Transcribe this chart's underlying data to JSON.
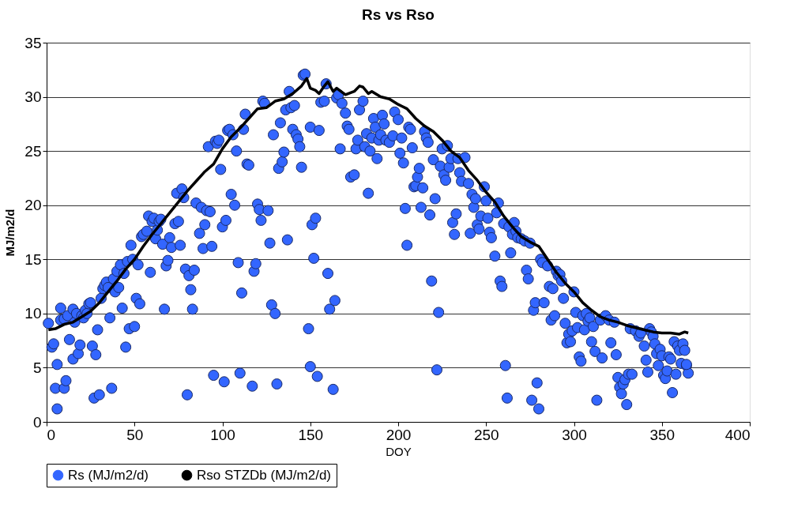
{
  "chart_data": {
    "type": "scatter",
    "title": "Rs vs Rso",
    "xlabel": "DOY",
    "ylabel": "MJ/m2/d",
    "xlim": [
      0,
      400
    ],
    "xticks": [
      0,
      50,
      100,
      150,
      200,
      250,
      300,
      350,
      400
    ],
    "ylim": [
      0,
      35
    ],
    "yticks": [
      0,
      5,
      10,
      15,
      20,
      25,
      30,
      35
    ],
    "grid": "y",
    "legend": "bottom",
    "series": [
      {
        "name": "Rs (MJ/m2/d)",
        "marker": "circle",
        "color": "#3366ff",
        "x": [
          1,
          3,
          4,
          5,
          6,
          6,
          8,
          8,
          10,
          10,
          11,
          12,
          13,
          15,
          15,
          16,
          17,
          18,
          19,
          20,
          21,
          22,
          23,
          24,
          25,
          26,
          27,
          28,
          29,
          30,
          31,
          32,
          33,
          34,
          35,
          36,
          37,
          38,
          39,
          40,
          41,
          42,
          43,
          44,
          45,
          46,
          47,
          48,
          49,
          50,
          51,
          52,
          53,
          54,
          55,
          57,
          58,
          59,
          60,
          61,
          62,
          63,
          64,
          65,
          66,
          67,
          68,
          69,
          70,
          71,
          73,
          74,
          75,
          76,
          77,
          78,
          79,
          80,
          81,
          82,
          83,
          84,
          85,
          87,
          88,
          89,
          90,
          91,
          92,
          93,
          94,
          95,
          96,
          97,
          98,
          99,
          100,
          101,
          102,
          103,
          104,
          105,
          106,
          107,
          108,
          109,
          110,
          111,
          112,
          113,
          114,
          115,
          117,
          118,
          119,
          120,
          121,
          122,
          123,
          124,
          126,
          127,
          128,
          129,
          130,
          131,
          132,
          133,
          134,
          135,
          136,
          137,
          138,
          139,
          140,
          141,
          142,
          143,
          144,
          145,
          146,
          147,
          149,
          150,
          150,
          151,
          152,
          153,
          154,
          155,
          156,
          158,
          159,
          160,
          161,
          163,
          164,
          165,
          166,
          167,
          168,
          170,
          171,
          172,
          173,
          175,
          176,
          177,
          178,
          180,
          181,
          182,
          183,
          184,
          185,
          186,
          187,
          188,
          189,
          190,
          191,
          192,
          193,
          195,
          197,
          198,
          200,
          201,
          202,
          203,
          204,
          205,
          206,
          207,
          208,
          209,
          210,
          211,
          212,
          213,
          214,
          215,
          216,
          217,
          218,
          219,
          220,
          221,
          222,
          223,
          224,
          225,
          226,
          227,
          228,
          229,
          230,
          231,
          232,
          233,
          234,
          235,
          236,
          238,
          240,
          241,
          242,
          243,
          244,
          245,
          246,
          247,
          249,
          250,
          251,
          252,
          253,
          255,
          256,
          257,
          258,
          259,
          260,
          261,
          262,
          263,
          264,
          265,
          266,
          267,
          268,
          270,
          272,
          273,
          274,
          275,
          276,
          277,
          278,
          279,
          280,
          281,
          282,
          283,
          285,
          286,
          287,
          288,
          289,
          290,
          291,
          292,
          293,
          294,
          295,
          296,
          297,
          298,
          299,
          300,
          301,
          302,
          303,
          304,
          305,
          306,
          307,
          308,
          309,
          310,
          311,
          312,
          313,
          315,
          316,
          318,
          320,
          321,
          323,
          324,
          325,
          326,
          327,
          328,
          329,
          330,
          331,
          332,
          333,
          335,
          337,
          338,
          340,
          341,
          342,
          343,
          344,
          345,
          346,
          347,
          348,
          349,
          350,
          351,
          352,
          353,
          354,
          355,
          356,
          357,
          358,
          359,
          360,
          361,
          362,
          363,
          364,
          365,
          364
        ],
        "values": [
          9.1,
          6.9,
          7.2,
          3.1,
          1.2,
          5.3,
          10.5,
          9.4,
          9.5,
          3.1,
          3.8,
          9.8,
          7.6,
          10.4,
          5.8,
          9.2,
          10.0,
          6.3,
          7.1,
          9.8,
          9.6,
          10.3,
          10.0,
          10.9,
          11.0,
          7.0,
          2.2,
          6.2,
          8.5,
          2.5,
          11.4,
          12.3,
          12.6,
          12.9,
          12.4,
          9.6,
          3.1,
          13.2,
          12.0,
          13.9,
          12.4,
          14.5,
          10.5,
          13.7,
          6.9,
          14.8,
          8.6,
          16.3,
          15.0,
          8.8,
          11.4,
          14.5,
          10.9,
          17.1,
          17.3,
          17.6,
          19.0,
          13.8,
          18.5,
          18.8,
          16.9,
          17.7,
          18.5,
          18.7,
          16.4,
          10.4,
          14.4,
          14.9,
          17.0,
          16.1,
          18.3,
          21.1,
          18.5,
          16.3,
          21.5,
          20.7,
          14.1,
          2.5,
          13.5,
          12.2,
          10.4,
          14.0,
          20.2,
          17.4,
          19.8,
          16.0,
          18.2,
          19.5,
          25.4,
          19.4,
          16.2,
          4.3,
          25.9,
          25.7,
          26.0,
          23.3,
          18.0,
          3.7,
          18.6,
          26.9,
          27.0,
          21.0,
          26.5,
          20.0,
          25.0,
          14.7,
          4.5,
          11.9,
          27.0,
          28.4,
          23.8,
          23.7,
          3.3,
          13.9,
          14.6,
          20.1,
          19.6,
          18.6,
          29.6,
          29.4,
          19.5,
          16.5,
          10.8,
          26.5,
          10.0,
          3.5,
          23.4,
          27.6,
          24.0,
          24.9,
          28.8,
          16.8,
          30.5,
          29.0,
          27.0,
          29.2,
          26.5,
          26.1,
          25.4,
          23.5,
          32.0,
          32.1,
          8.6,
          27.2,
          5.1,
          18.2,
          15.1,
          18.8,
          4.2,
          26.9,
          29.5,
          29.6,
          31.2,
          13.7,
          10.4,
          3.0,
          11.2,
          29.9,
          30.2,
          25.2,
          29.4,
          28.5,
          27.3,
          27.0,
          22.6,
          22.8,
          25.2,
          26.0,
          28.8,
          29.6,
          25.4,
          26.6,
          21.1,
          25.0,
          26.2,
          28.0,
          27.2,
          24.3,
          26.0,
          26.5,
          28.3,
          27.5,
          26.0,
          25.8,
          26.4,
          28.6,
          27.9,
          24.8,
          26.2,
          23.9,
          19.7,
          16.3,
          27.2,
          27.0,
          25.3,
          21.7,
          21.8,
          22.6,
          23.4,
          19.8,
          21.6,
          26.8,
          26.2,
          25.8,
          19.1,
          13.0,
          24.2,
          20.6,
          4.8,
          10.1,
          23.6,
          25.2,
          22.8,
          22.3,
          25.5,
          23.5,
          24.3,
          18.4,
          17.3,
          19.2,
          24.3,
          23.0,
          22.2,
          24.4,
          22.0,
          17.4,
          21.0,
          19.8,
          20.6,
          18.2,
          17.8,
          19.0,
          21.7,
          20.4,
          18.8,
          17.5,
          17.0,
          15.3,
          19.3,
          20.2,
          13.0,
          12.5,
          18.3,
          5.2,
          2.2,
          18.0,
          15.6,
          17.3,
          18.4,
          17.6,
          17.0,
          16.9,
          16.7,
          14.0,
          13.2,
          16.5,
          2.0,
          10.3,
          11.0,
          3.6,
          1.2,
          15.0,
          14.7,
          11.0,
          14.4,
          12.5,
          9.4,
          12.3,
          9.8,
          13.9,
          13.5,
          13.6,
          13.0,
          11.4,
          9.1,
          7.3,
          8.1,
          7.4,
          8.4,
          12.0,
          10.1,
          8.7,
          6.0,
          5.6,
          9.8,
          8.5,
          10.0,
          9.3,
          9.6,
          7.4,
          8.8,
          6.5,
          2.0,
          9.4,
          5.9,
          9.8,
          9.4,
          7.3,
          9.2,
          6.2,
          4.1,
          3.2,
          2.6,
          3.5,
          3.9,
          1.6,
          4.4,
          8.6,
          4.4,
          8.4,
          7.9,
          8.2,
          7.0,
          5.7,
          4.6,
          8.6,
          8.3,
          7.9,
          7.2,
          6.3,
          5.2,
          6.7,
          6.1,
          4.3,
          4.0,
          4.7,
          6.0,
          5.8,
          2.7,
          7.4,
          4.4,
          7.0,
          6.6,
          5.4,
          7.2,
          6.6,
          5.2,
          4.5,
          5.3
        ]
      },
      {
        "name": "Rso STZDb (MJ/m2/d)",
        "type": "line",
        "color": "#000000",
        "x": [
          1,
          5,
          10,
          15,
          20,
          25,
          30,
          35,
          40,
          45,
          50,
          55,
          60,
          65,
          70,
          75,
          80,
          85,
          90,
          95,
          100,
          105,
          110,
          115,
          120,
          125,
          130,
          135,
          140,
          145,
          148,
          150,
          153,
          155,
          158,
          160,
          163,
          165,
          170,
          175,
          178,
          180,
          183,
          185,
          190,
          195,
          200,
          205,
          210,
          215,
          220,
          225,
          230,
          235,
          240,
          245,
          250,
          255,
          260,
          265,
          270,
          275,
          280,
          285,
          290,
          295,
          300,
          305,
          310,
          315,
          320,
          325,
          330,
          335,
          340,
          345,
          350,
          355,
          360,
          363,
          365
        ],
        "values": [
          8.5,
          8.6,
          9.0,
          9.2,
          9.7,
          10.2,
          11.0,
          12.0,
          13.0,
          14.1,
          15.0,
          16.2,
          17.3,
          18.3,
          19.3,
          20.3,
          21.3,
          22.2,
          23.1,
          23.8,
          25.2,
          26.3,
          27.1,
          28.0,
          28.9,
          29.0,
          29.6,
          29.8,
          30.3,
          31.0,
          31.7,
          30.8,
          30.6,
          30.3,
          31.0,
          31.4,
          30.5,
          30.8,
          30.2,
          30.5,
          31.0,
          30.9,
          30.3,
          30.5,
          30.0,
          29.8,
          29.3,
          28.9,
          28.0,
          27.3,
          26.8,
          26.0,
          25.0,
          24.4,
          23.2,
          22.3,
          21.2,
          20.3,
          19.0,
          18.0,
          17.1,
          16.6,
          16.2,
          15.0,
          13.8,
          12.8,
          12.0,
          11.0,
          10.3,
          9.7,
          9.4,
          9.2,
          8.9,
          8.7,
          8.5,
          8.3,
          8.2,
          8.2,
          8.1,
          8.3,
          8.2
        ]
      }
    ]
  }
}
